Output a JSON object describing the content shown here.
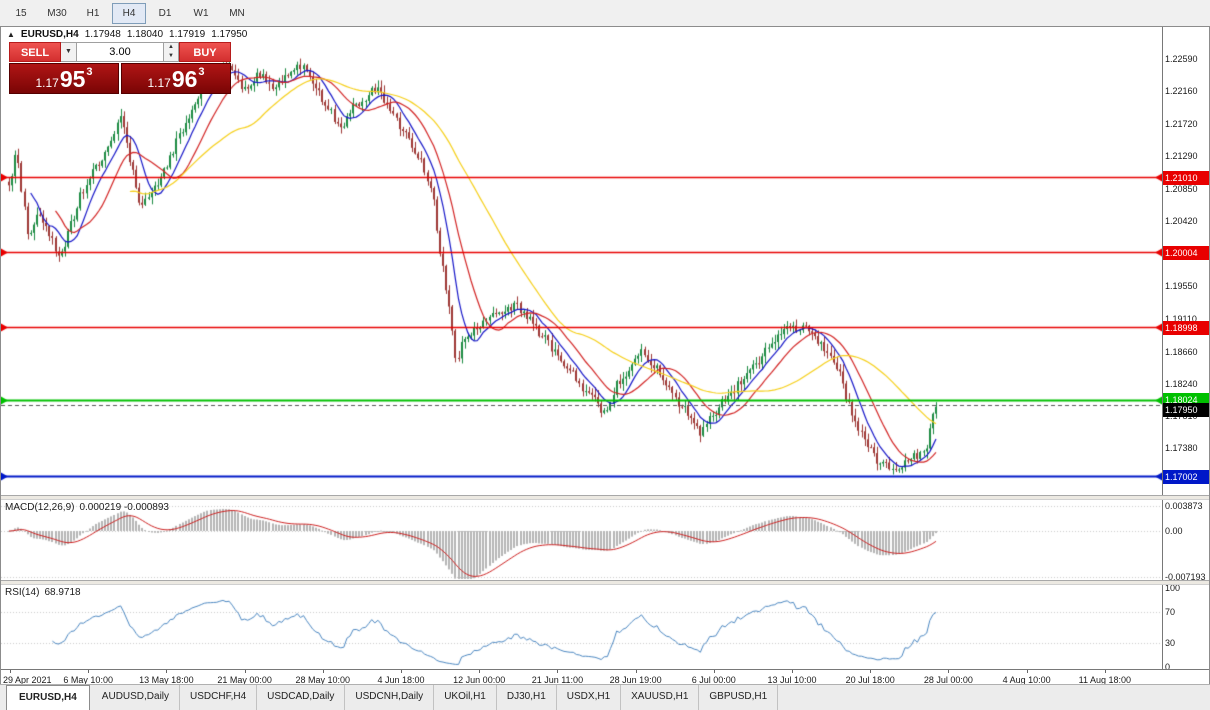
{
  "toolbar": {
    "timeframes": [
      {
        "label": "15",
        "active": false
      },
      {
        "label": "M30",
        "active": false
      },
      {
        "label": "H1",
        "active": false
      },
      {
        "label": "H4",
        "active": true
      },
      {
        "label": "D1",
        "active": false
      },
      {
        "label": "W1",
        "active": false
      },
      {
        "label": "MN",
        "active": false
      }
    ]
  },
  "chart": {
    "symbol_line": {
      "symbol": "EURUSD,H4",
      "open": "1.17948",
      "high": "1.18040",
      "low": "1.17919",
      "close": "1.17950"
    },
    "trade_panel": {
      "sell_label": "SELL",
      "buy_label": "BUY",
      "volume": "3.00",
      "sell_price": {
        "small": "1.17",
        "big": "95",
        "sup": "3"
      },
      "buy_price": {
        "small": "1.17",
        "big": "96",
        "sup": "3"
      }
    }
  },
  "chart_data": {
    "type": "candlestick",
    "symbol": "EURUSD",
    "timeframe": "H4",
    "bars": 300,
    "y_axis": {
      "min": 1.1675,
      "max": 1.2302,
      "ticks": [
        "1.22590",
        "1.22160",
        "1.21720",
        "1.21290",
        "1.20850",
        "1.20420",
        "1.19550",
        "1.19110",
        "1.18660",
        "1.18240",
        "1.17810",
        "1.17380"
      ]
    },
    "x_labels": [
      "29 Apr 2021",
      "6 May 10:00",
      "13 May 18:00",
      "21 May 00:00",
      "28 May 10:00",
      "4 Jun 18:00",
      "12 Jun 00:00",
      "21 Jun 11:00",
      "28 Jun 19:00",
      "6 Jul 00:00",
      "13 Jul 10:00",
      "20 Jul 18:00",
      "28 Jul 00:00",
      "4 Aug 10:00",
      "11 Aug 18:00"
    ],
    "price_anchors": [
      [
        0.0,
        1.209
      ],
      [
        0.008,
        1.2128
      ],
      [
        0.016,
        1.206
      ],
      [
        0.022,
        1.2018
      ],
      [
        0.03,
        1.2052
      ],
      [
        0.04,
        1.203
      ],
      [
        0.056,
        1.1996
      ],
      [
        0.068,
        1.2042
      ],
      [
        0.08,
        1.2082
      ],
      [
        0.094,
        1.2118
      ],
      [
        0.108,
        1.2142
      ],
      [
        0.121,
        1.2183
      ],
      [
        0.132,
        1.2118
      ],
      [
        0.142,
        1.2065
      ],
      [
        0.155,
        1.2082
      ],
      [
        0.17,
        1.2118
      ],
      [
        0.185,
        1.2158
      ],
      [
        0.2,
        1.2198
      ],
      [
        0.215,
        1.2232
      ],
      [
        0.239,
        1.225
      ],
      [
        0.255,
        1.2216
      ],
      [
        0.27,
        1.224
      ],
      [
        0.285,
        1.2222
      ],
      [
        0.3,
        1.2238
      ],
      [
        0.315,
        1.2248
      ],
      [
        0.33,
        1.2224
      ],
      [
        0.345,
        1.2192
      ],
      [
        0.358,
        1.2166
      ],
      [
        0.372,
        1.2194
      ],
      [
        0.396,
        1.2218
      ],
      [
        0.41,
        1.2192
      ],
      [
        0.425,
        1.2162
      ],
      [
        0.44,
        1.2132
      ],
      [
        0.455,
        1.2088
      ],
      [
        0.465,
        1.2002
      ],
      [
        0.475,
        1.1922
      ],
      [
        0.482,
        1.1856
      ],
      [
        0.492,
        1.1884
      ],
      [
        0.505,
        1.1902
      ],
      [
        0.52,
        1.1916
      ],
      [
        0.547,
        1.1928
      ],
      [
        0.56,
        1.1912
      ],
      [
        0.575,
        1.189
      ],
      [
        0.59,
        1.1866
      ],
      [
        0.605,
        1.1844
      ],
      [
        0.62,
        1.1816
      ],
      [
        0.644,
        1.1786
      ],
      [
        0.658,
        1.1826
      ],
      [
        0.682,
        1.1868
      ],
      [
        0.695,
        1.185
      ],
      [
        0.71,
        1.1822
      ],
      [
        0.725,
        1.1796
      ],
      [
        0.746,
        1.176
      ],
      [
        0.76,
        1.1786
      ],
      [
        0.775,
        1.1806
      ],
      [
        0.79,
        1.1826
      ],
      [
        0.805,
        1.185
      ],
      [
        0.82,
        1.1876
      ],
      [
        0.838,
        1.1896
      ],
      [
        0.86,
        1.1902
      ],
      [
        0.872,
        1.1882
      ],
      [
        0.885,
        1.1866
      ],
      [
        0.895,
        1.1842
      ],
      [
        0.905,
        1.1802
      ],
      [
        0.915,
        1.1766
      ],
      [
        0.925,
        1.1742
      ],
      [
        0.94,
        1.1718
      ],
      [
        0.957,
        1.1706
      ],
      [
        0.968,
        1.172
      ],
      [
        0.978,
        1.1728
      ],
      [
        0.988,
        1.1736
      ],
      [
        1.0,
        1.1795
      ]
    ],
    "candle_colors": {
      "up": "#1b8a41",
      "down": "#9d3734"
    },
    "moving_averages": [
      {
        "period": 8,
        "color": "#1616c8"
      },
      {
        "period": 16,
        "color": "#d22424"
      },
      {
        "period": 40,
        "color": "#f5cf1a"
      }
    ],
    "hlines": [
      {
        "price": 1.2101,
        "label": "1.21010",
        "color": "#e80000",
        "width": 1.5
      },
      {
        "price": 1.20004,
        "label": "1.20004",
        "color": "#e80000",
        "width": 1.5
      },
      {
        "price": 1.18998,
        "label": "1.18998",
        "color": "#e80000",
        "width": 1.5
      },
      {
        "price": 1.18024,
        "label": "1.18024",
        "color": "#00c000",
        "width": 2
      },
      {
        "price": 1.17002,
        "label": "1.17002",
        "color": "#0018c8",
        "width": 2
      }
    ],
    "current_price": {
      "price": 1.1795,
      "label": "1.17950",
      "color": "#000000"
    },
    "macd": {
      "title": "MACD(12,26,9)",
      "values": "0.000219 -0.000893",
      "fast": 12,
      "slow": 26,
      "signal_period": 9,
      "scale": [
        "0.003873",
        "0.00",
        "-0.007193"
      ],
      "hist_color": "#b5b5b5",
      "signal_color": "#cc1f1f"
    },
    "rsi": {
      "title": "RSI(14)",
      "value": "68.9718",
      "period": 14,
      "levels": [
        "100",
        "70",
        "30",
        "0"
      ],
      "color": "#4a86c0"
    }
  },
  "tabs": [
    {
      "label": "EURUSD,H4",
      "active": true
    },
    {
      "label": "AUDUSD,Daily",
      "active": false
    },
    {
      "label": "USDCHF,H4",
      "active": false
    },
    {
      "label": "USDCAD,Daily",
      "active": false
    },
    {
      "label": "USDCNH,Daily",
      "active": false
    },
    {
      "label": "UKOil,H1",
      "active": false
    },
    {
      "label": "DJ30,H1",
      "active": false
    },
    {
      "label": "USDX,H1",
      "active": false
    },
    {
      "label": "XAUUSD,H1",
      "active": false
    },
    {
      "label": "GBPUSD,H1",
      "active": false
    }
  ]
}
